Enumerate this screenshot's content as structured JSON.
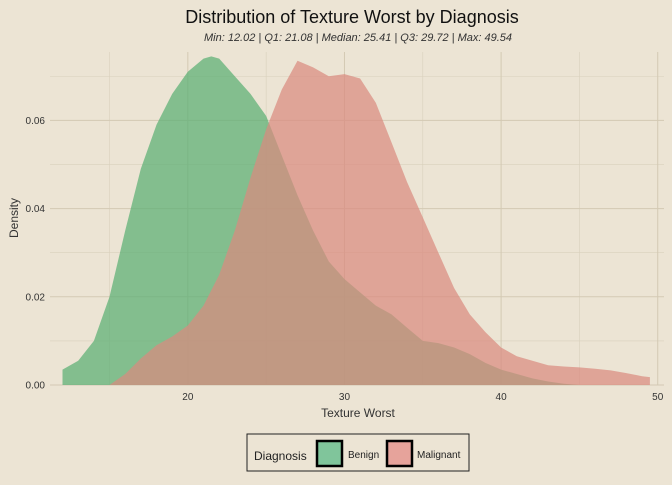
{
  "chart_data": {
    "type": "area",
    "title": "Distribution of Texture Worst by Diagnosis",
    "subtitle": "Min: 12.02 | Q1: 21.08 | Median: 25.41 | Q3: 29.72 | Max: 49.54",
    "xlabel": "Texture Worst",
    "ylabel": "Density",
    "xlim": [
      11.2,
      50.4
    ],
    "ylim": [
      0,
      0.0755
    ],
    "x_ticks": [
      20,
      30,
      40,
      50
    ],
    "y_ticks": [
      0.0,
      0.02,
      0.04,
      0.06
    ],
    "y_tick_labels": [
      "0.00",
      "0.02",
      "0.04",
      "0.06"
    ],
    "grid": true,
    "legend": {
      "title": "Diagnosis",
      "position": "bottom"
    },
    "series": [
      {
        "name": "Benign",
        "color": "#5aaf73",
        "x": [
          12.0,
          13.0,
          14.0,
          15.0,
          16.0,
          17.0,
          18.0,
          19.0,
          20.0,
          21.0,
          21.5,
          22.0,
          23.0,
          24.0,
          25.0,
          26.0,
          27.0,
          28.0,
          29.0,
          30.0,
          31.0,
          32.0,
          33.0,
          34.0,
          35.0,
          36.0,
          37.0,
          38.0,
          39.0,
          40.0,
          41.0,
          42.0,
          43.0,
          44.0,
          45.0
        ],
        "y": [
          0.0035,
          0.0055,
          0.01,
          0.02,
          0.035,
          0.049,
          0.059,
          0.066,
          0.071,
          0.074,
          0.0745,
          0.074,
          0.07,
          0.066,
          0.061,
          0.052,
          0.043,
          0.035,
          0.028,
          0.024,
          0.021,
          0.018,
          0.016,
          0.013,
          0.01,
          0.0095,
          0.0085,
          0.007,
          0.005,
          0.0035,
          0.0025,
          0.0015,
          0.0008,
          0.0003,
          0.0
        ]
      },
      {
        "name": "Malignant",
        "color": "#d98a80",
        "x": [
          15.0,
          16.0,
          17.0,
          18.0,
          19.0,
          20.0,
          21.0,
          22.0,
          23.0,
          24.0,
          25.0,
          26.0,
          27.0,
          28.0,
          29.0,
          30.0,
          31.0,
          32.0,
          33.0,
          34.0,
          35.0,
          36.0,
          37.0,
          38.0,
          39.0,
          40.0,
          41.0,
          42.0,
          43.0,
          44.0,
          45.0,
          46.0,
          47.0,
          48.0,
          49.0,
          49.5
        ],
        "y": [
          0.0,
          0.0025,
          0.006,
          0.009,
          0.011,
          0.0135,
          0.018,
          0.025,
          0.035,
          0.047,
          0.058,
          0.067,
          0.0735,
          0.072,
          0.07,
          0.0705,
          0.0695,
          0.064,
          0.055,
          0.046,
          0.038,
          0.03,
          0.022,
          0.016,
          0.012,
          0.0085,
          0.0065,
          0.0055,
          0.0045,
          0.0042,
          0.004,
          0.0037,
          0.0033,
          0.0027,
          0.002,
          0.0018
        ]
      }
    ]
  }
}
